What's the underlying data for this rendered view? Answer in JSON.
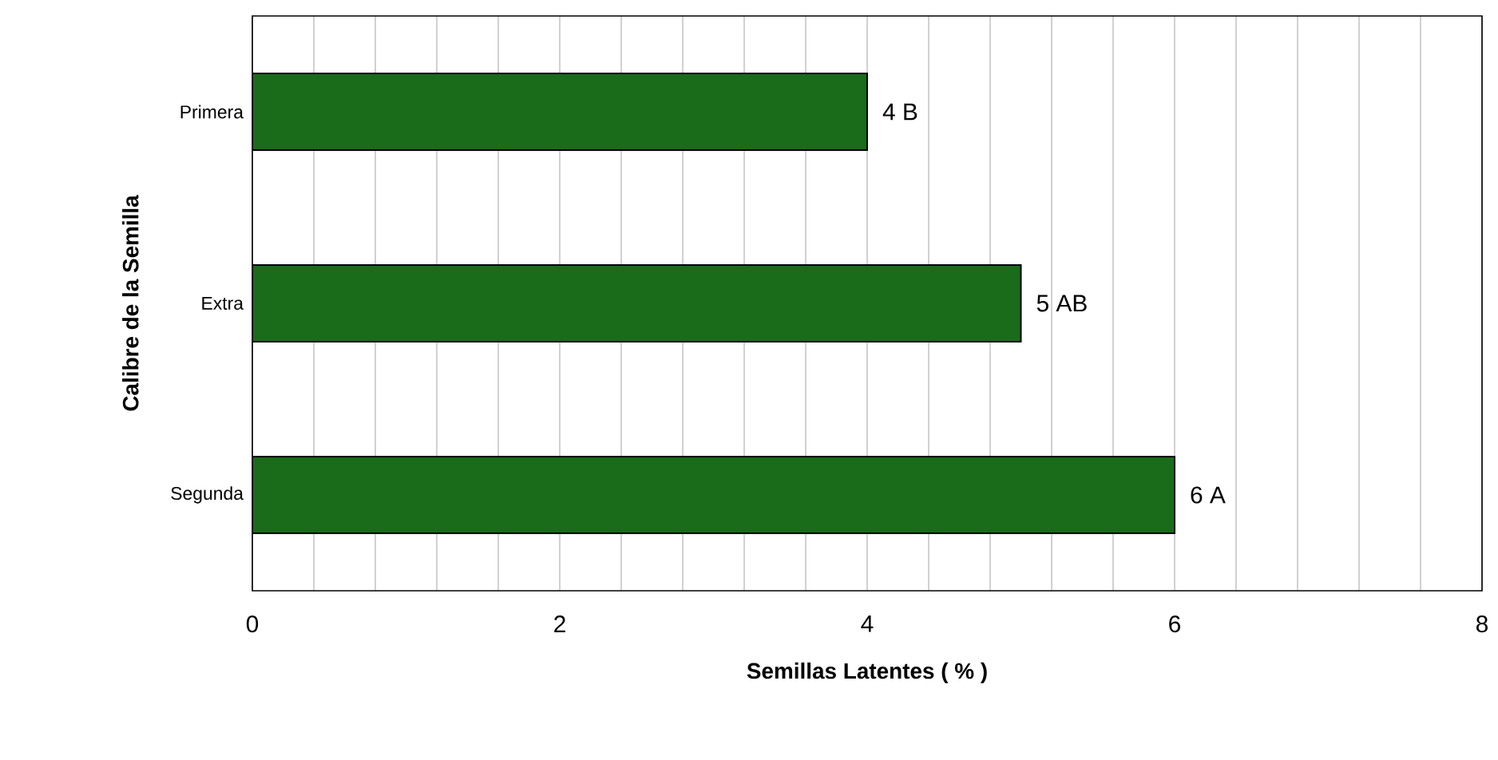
{
  "chart_data": {
    "type": "bar",
    "orientation": "horizontal",
    "xlabel": "Semillas  Latentes ( % )",
    "ylabel": "Calibre de la Semilla",
    "categories": [
      "Primera",
      "Extra",
      "Segunda"
    ],
    "values": [
      4,
      5,
      6
    ],
    "value_labels": [
      "4  B",
      "5  AB",
      "6  A"
    ],
    "color": "#1a6b1a",
    "xlim": [
      0,
      8
    ],
    "xticks": [
      0,
      {
        "value": 0.4,
        "label": null
      },
      {
        "value": 0.8,
        "label": null
      },
      {
        "value": 1.2,
        "label": null
      },
      {
        "value": 1.6,
        "label": null
      },
      2,
      {
        "value": 2.4,
        "label": null
      },
      {
        "value": 2.8,
        "label": null
      },
      {
        "value": 3.2,
        "label": null
      },
      {
        "value": 3.6,
        "label": null
      },
      4,
      {
        "value": 4.4,
        "label": null
      },
      {
        "value": 4.8,
        "label": null
      },
      {
        "value": 5.2,
        "label": null
      },
      {
        "value": 5.6,
        "label": null
      },
      6,
      {
        "value": 6.4,
        "label": null
      },
      {
        "value": 6.8,
        "label": null
      },
      {
        "value": 7.2,
        "label": null
      },
      {
        "value": 7.6,
        "label": null
      },
      8
    ],
    "grid": "x"
  }
}
